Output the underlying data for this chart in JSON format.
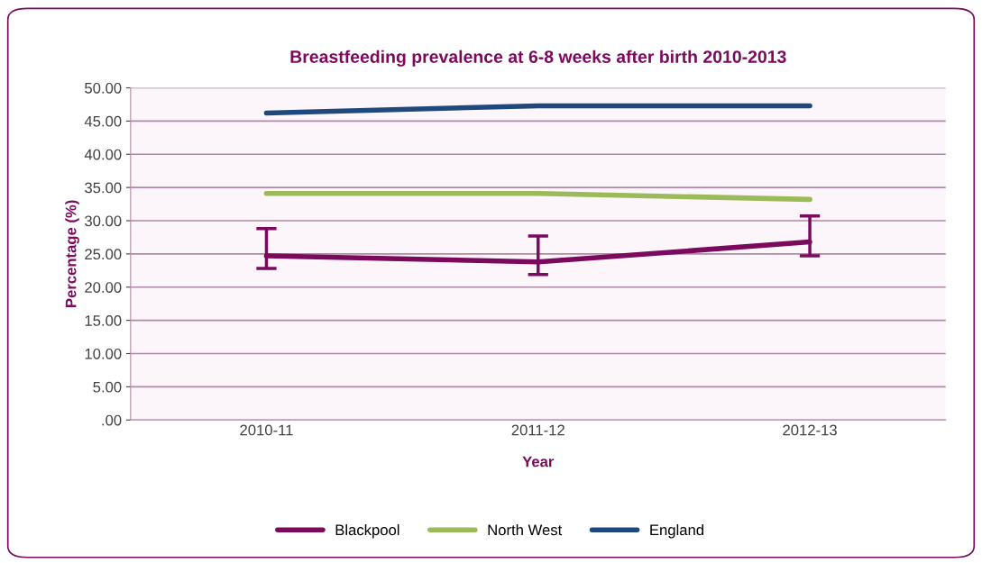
{
  "chart_data": {
    "type": "line",
    "title": "Breastfeeding prevalence at 6-8 weeks after birth 2010-2013",
    "xlabel": "Year",
    "ylabel": "Percentage (%)",
    "categories": [
      "2010-11",
      "2011-12",
      "2012-13"
    ],
    "series": [
      {
        "name": "Blackpool",
        "color": "#7b0a5f",
        "values": [
          24.7,
          23.8,
          26.8
        ],
        "errors": [
          [
            22.8,
            28.8
          ],
          [
            21.9,
            27.7
          ],
          [
            24.7,
            30.7
          ]
        ]
      },
      {
        "name": "North West",
        "color": "#9bbb59",
        "values": [
          34.1,
          34.1,
          33.2
        ]
      },
      {
        "name": "England",
        "color": "#1f497d",
        "values": [
          46.2,
          47.3,
          47.3
        ]
      }
    ],
    "ylim": [
      0,
      50
    ],
    "yticks": [
      {
        "value": 0,
        "label": ".00"
      },
      {
        "value": 5,
        "label": "5.00"
      },
      {
        "value": 10,
        "label": "10.00"
      },
      {
        "value": 15,
        "label": "15.00"
      },
      {
        "value": 20,
        "label": "20.00"
      },
      {
        "value": 25,
        "label": "25.00"
      },
      {
        "value": 30,
        "label": "30.00"
      },
      {
        "value": 35,
        "label": "35.00"
      },
      {
        "value": 40,
        "label": "40.00"
      },
      {
        "value": 45,
        "label": "45.00"
      },
      {
        "value": 50,
        "label": "50.00"
      }
    ],
    "grid": "y",
    "legend": "bottom",
    "marker": "none",
    "line_style": "solid"
  }
}
